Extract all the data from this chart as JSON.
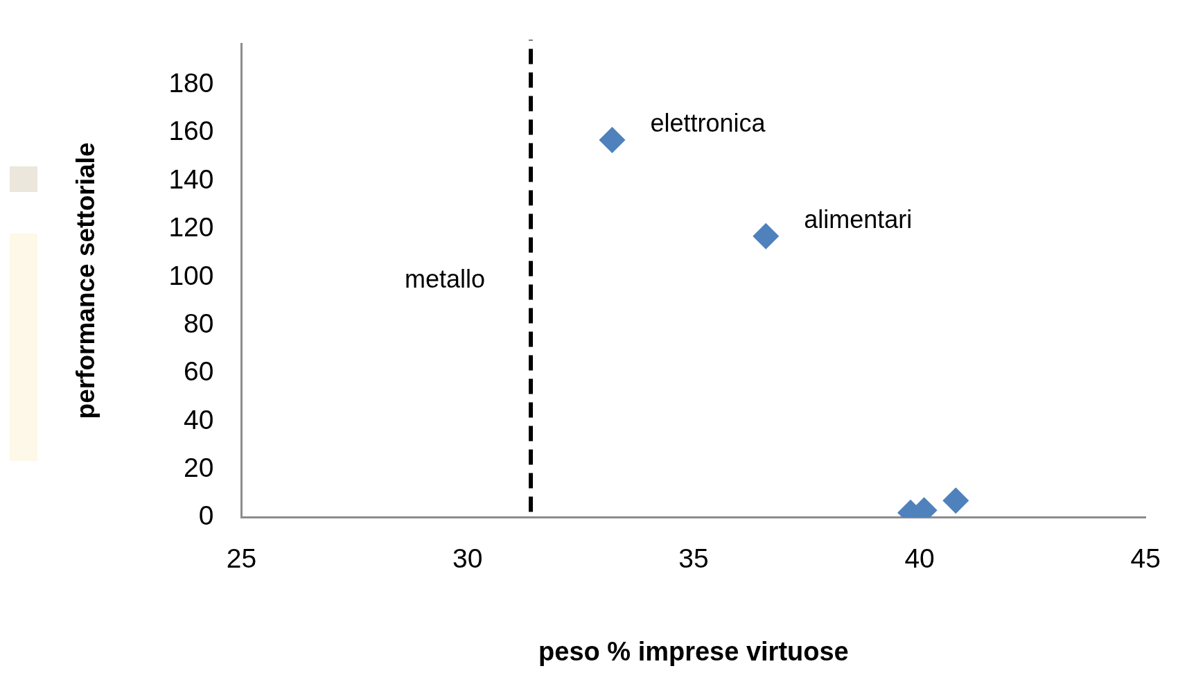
{
  "chart_data": {
    "type": "scatter",
    "xlabel": "peso % imprese virtuose",
    "ylabel": "performance settoriale",
    "x": [
      33.2,
      36.6,
      39.8,
      40.1,
      40.8
    ],
    "series": [
      {
        "color": "#4f81bd",
        "values": [
          157,
          117,
          2,
          3,
          7
        ]
      }
    ],
    "marker": "diamond",
    "grid": false,
    "legend": false,
    "xlim": [
      25,
      45
    ],
    "xticks": [
      25,
      30,
      35,
      40,
      45
    ],
    "ylim": [
      0,
      197
    ],
    "yticks": [
      0,
      20,
      40,
      60,
      80,
      100,
      120,
      140,
      160,
      180
    ],
    "ref_lines": [
      {
        "axis": "x",
        "value": 31.4,
        "color": "#000000",
        "line_style": "dashed"
      }
    ],
    "annotations": [
      {
        "text": "elettronica",
        "x": 33.2,
        "y": 157
      },
      {
        "text": "alimentari",
        "x": 36.6,
        "y": 117
      },
      "metallo"
    ]
  }
}
